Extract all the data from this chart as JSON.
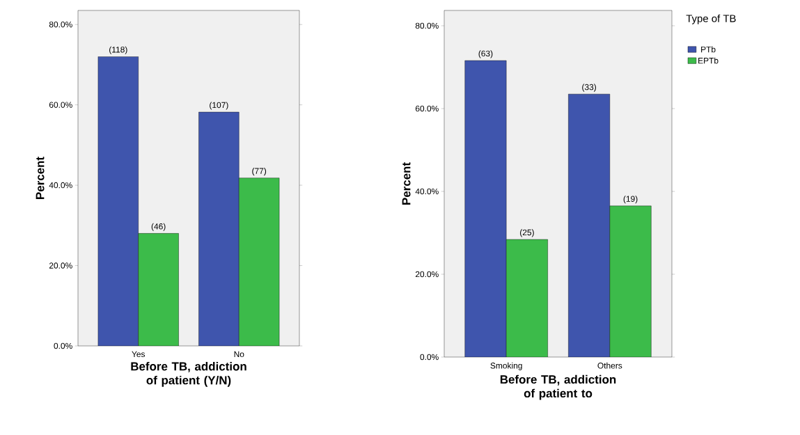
{
  "chart_data": [
    {
      "type": "bar",
      "xlabel": "Before TB, addiction of patient (Y/N)",
      "ylabel": "Percent",
      "categories": [
        "Yes",
        "No"
      ],
      "series": [
        {
          "color": "#3f55ad",
          "values": [
            72.0,
            58.2
          ]
        },
        {
          "color": "#3cbb4a",
          "values": [
            28.0,
            41.8
          ]
        }
      ],
      "annotations": [
        {
          "text": "(118)",
          "x": "Yes",
          "y": 72.0
        },
        {
          "text": "(46)",
          "x": "Yes",
          "y": 28.0
        },
        {
          "text": "(107)",
          "x": "No",
          "y": 58.2
        },
        {
          "text": "(77)",
          "x": "No",
          "y": 41.8
        }
      ],
      "ylim": [
        0,
        83.5
      ],
      "yticks": [
        {
          "value": 0,
          "label": "0.0%"
        },
        {
          "value": 20,
          "label": "20.0%"
        },
        {
          "value": 40,
          "label": "40.0%"
        },
        {
          "value": 60,
          "label": "60.0%"
        },
        {
          "value": 80,
          "label": "80.0%"
        }
      ]
    },
    {
      "type": "bar",
      "xlabel": "Before TB, addiction of patient to",
      "ylabel": "Percent",
      "categories": [
        "Smoking",
        "Others"
      ],
      "series": [
        {
          "name": "PTb",
          "color": "#3f55ad",
          "values": [
            71.6,
            63.5
          ]
        },
        {
          "name": "EPTb",
          "color": "#3cbb4a",
          "values": [
            28.4,
            36.5
          ]
        }
      ],
      "annotations": [
        {
          "text": "(63)",
          "x": "Smoking",
          "y": 71.6
        },
        {
          "text": "(25)",
          "x": "Smoking",
          "y": 28.4
        },
        {
          "text": "(33)",
          "x": "Others",
          "y": 63.5
        },
        {
          "text": "(19)",
          "x": "Others",
          "y": 36.5
        }
      ],
      "ylim": [
        0,
        83.7
      ],
      "yticks": [
        {
          "value": 0,
          "label": "0.0%"
        },
        {
          "value": 20,
          "label": "20.0%"
        },
        {
          "value": 40,
          "label": "40.0%"
        },
        {
          "value": 60,
          "label": "60.0%"
        },
        {
          "value": 80,
          "label": "80.0%"
        }
      ],
      "legend": "right",
      "legend_title": "Type of TB"
    }
  ]
}
